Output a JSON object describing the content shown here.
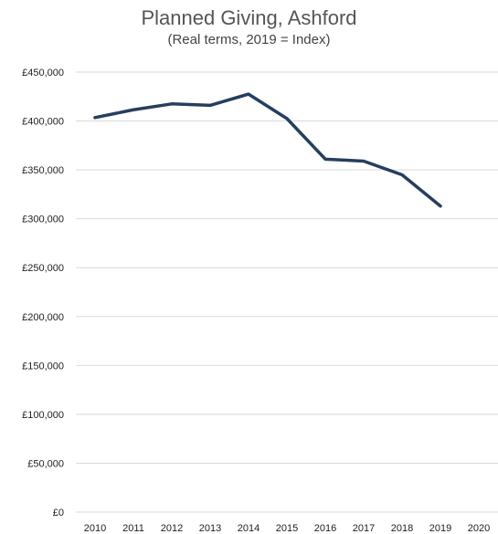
{
  "chart_data": {
    "type": "line",
    "title": "Planned Giving, Ashford",
    "subtitle": "(Real terms, 2019 = Index)",
    "xlabel": "",
    "ylabel": "",
    "categories": [
      "2010",
      "2011",
      "2012",
      "2013",
      "2014",
      "2015",
      "2016",
      "2017",
      "2018",
      "2019",
      "2020"
    ],
    "series": [
      {
        "values": [
          403500,
          411500,
          417500,
          416000,
          427500,
          402500,
          361000,
          359000,
          345000,
          313000,
          null
        ],
        "color": "#263e5f"
      }
    ],
    "ylim": [
      0,
      450000
    ],
    "yticks": [
      0,
      50000,
      100000,
      150000,
      200000,
      250000,
      300000,
      350000,
      400000,
      450000
    ],
    "ytick_labels": [
      "£0",
      "£50,000",
      "£100,000",
      "£150,000",
      "£200,000",
      "£250,000",
      "£300,000",
      "£350,000",
      "£400,000",
      "£450,000"
    ],
    "grid": true,
    "legend": "none"
  }
}
